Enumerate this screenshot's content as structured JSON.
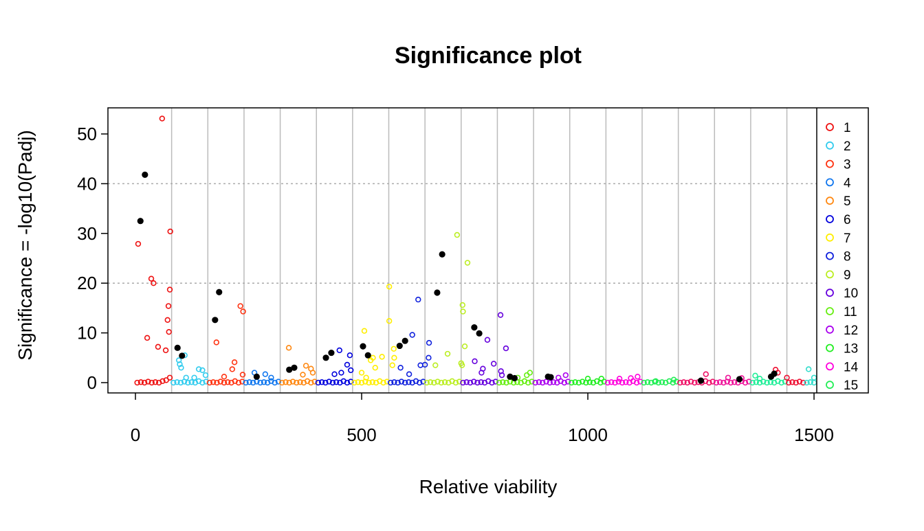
{
  "chart_data": {
    "type": "scatter",
    "title": "Significance plot",
    "x_label": "Relative viability",
    "y_label": "Significance = -log10(Padj)",
    "xlim": [
      -60.8,
      1506
    ],
    "ylim": [
      -2.07,
      55.25
    ],
    "xticks": [
      0,
      500,
      1000,
      1500
    ],
    "yticks": [
      0,
      10,
      20,
      30,
      40,
      50
    ],
    "hgrid": [
      20,
      40
    ],
    "vgrid": [
      80,
      160,
      240,
      320,
      400,
      480,
      560,
      640,
      720,
      800,
      880,
      960,
      1040,
      1120,
      1200,
      1280,
      1360,
      1440
    ],
    "legend": "right",
    "series": [
      {
        "name": "1",
        "color": "#ee1111",
        "x": [
          4,
          12,
          20,
          28,
          36,
          44,
          52,
          60,
          68,
          76,
          6,
          59,
          35,
          40,
          77,
          76,
          73,
          71,
          74,
          67,
          50,
          26
        ],
        "y": [
          0,
          0.1,
          0,
          0.2,
          0,
          0.1,
          0,
          0.3,
          0.5,
          1,
          27.9,
          53.1,
          20.9,
          20,
          30.4,
          18.7,
          15.4,
          12.6,
          10.2,
          6.5,
          7.2,
          9
        ]
      },
      {
        "name": "2",
        "color": "#33ccee",
        "x": [
          84,
          92,
          100,
          108,
          116,
          124,
          132,
          140,
          148,
          156,
          109,
          96,
          98,
          101,
          140,
          148,
          155,
          112,
          130
        ],
        "y": [
          0,
          0.1,
          0,
          0.2,
          0,
          0.1,
          0,
          0.3,
          0,
          0.2,
          5.5,
          4.5,
          3.7,
          3,
          2.7,
          2.5,
          1.5,
          1,
          1
        ]
      },
      {
        "name": "3",
        "color": "#ff3311",
        "x": [
          164,
          172,
          180,
          188,
          196,
          204,
          212,
          220,
          228,
          236,
          179,
          232,
          238,
          219,
          214,
          237,
          196
        ],
        "y": [
          0,
          0.1,
          0,
          0.2,
          0,
          0.1,
          0,
          0.3,
          0,
          0.2,
          8.1,
          15.4,
          14.3,
          4.1,
          2.7,
          1.6,
          1.2
        ]
      },
      {
        "name": "4",
        "color": "#1177ee",
        "x": [
          244,
          252,
          260,
          268,
          276,
          284,
          292,
          300,
          308,
          316,
          263,
          287,
          300
        ],
        "y": [
          0,
          0.1,
          0,
          0.2,
          0,
          0.1,
          0,
          0.3,
          0,
          0.2,
          2,
          1.7,
          1
        ]
      },
      {
        "name": "5",
        "color": "#ff8811",
        "x": [
          324,
          332,
          340,
          348,
          356,
          364,
          372,
          380,
          388,
          396,
          339,
          377,
          388,
          392,
          370
        ],
        "y": [
          0,
          0.1,
          0,
          0.2,
          0,
          0.1,
          0,
          0.3,
          0,
          0.2,
          7,
          3.4,
          2.8,
          2,
          1.6
        ]
      },
      {
        "name": "6",
        "color": "#0000dd",
        "x": [
          404,
          412,
          420,
          428,
          436,
          444,
          452,
          460,
          468,
          476,
          451,
          474,
          468,
          440,
          455,
          476
        ],
        "y": [
          0,
          0.1,
          0,
          0.2,
          0,
          0.1,
          0,
          0.3,
          0,
          0.2,
          6.5,
          5.5,
          3.6,
          1.7,
          2,
          2.5
        ]
      },
      {
        "name": "7",
        "color": "#ffee00",
        "x": [
          484,
          492,
          500,
          508,
          516,
          524,
          532,
          540,
          548,
          556,
          506,
          545,
          525,
          520,
          530,
          500,
          510,
          561,
          561,
          571,
          572,
          568
        ],
        "y": [
          0,
          0.1,
          0,
          0.2,
          0,
          0.1,
          0,
          0.3,
          0,
          0.2,
          10.4,
          5.2,
          5,
          4.5,
          3,
          2,
          1,
          19.3,
          12.4,
          6.8,
          5,
          3.5
        ]
      },
      {
        "name": "8",
        "color": "#1122dd",
        "x": [
          564,
          572,
          580,
          588,
          596,
          604,
          612,
          620,
          628,
          636,
          625,
          612,
          649,
          648,
          630,
          640,
          586,
          605
        ],
        "y": [
          0,
          0.1,
          0,
          0.2,
          0,
          0.1,
          0,
          0.3,
          0,
          0.2,
          16.7,
          9.6,
          8,
          5,
          3.5,
          3.6,
          3,
          1.7
        ]
      },
      {
        "name": "9",
        "color": "#bbee22",
        "x": [
          644,
          652,
          660,
          668,
          676,
          684,
          692,
          700,
          708,
          716,
          711,
          734,
          723,
          724,
          728,
          690,
          663,
          720,
          722
        ],
        "y": [
          0,
          0.1,
          0,
          0.2,
          0,
          0.1,
          0,
          0.3,
          0,
          0.2,
          29.7,
          24.1,
          15.6,
          14.3,
          7.3,
          5.8,
          3.5,
          3.9,
          3.5
        ]
      },
      {
        "name": "10",
        "color": "#6600dd",
        "x": [
          724,
          732,
          740,
          748,
          756,
          764,
          772,
          780,
          788,
          796,
          807,
          778,
          819,
          750,
          792,
          768,
          765,
          808,
          810
        ],
        "y": [
          0,
          0.1,
          0,
          0.2,
          0,
          0.1,
          0,
          0.3,
          0,
          0.2,
          13.6,
          8.6,
          6.9,
          4.3,
          3.8,
          2.8,
          2,
          2.3,
          1.5
        ]
      },
      {
        "name": "11",
        "color": "#66ee11",
        "x": [
          804,
          812,
          820,
          828,
          836,
          844,
          852,
          860,
          868,
          876,
          872,
          865,
          845
        ],
        "y": [
          0,
          0.1,
          0,
          0.2,
          0,
          0.1,
          0,
          0.3,
          0,
          0.2,
          2,
          1.5,
          1
        ]
      },
      {
        "name": "12",
        "color": "#aa00ee",
        "x": [
          884,
          892,
          900,
          908,
          916,
          924,
          932,
          940,
          948,
          956,
          951,
          935
        ],
        "y": [
          0,
          0.1,
          0,
          0.2,
          0,
          0.1,
          0,
          0.3,
          0,
          0.2,
          1.5,
          1
        ]
      },
      {
        "name": "13",
        "color": "#22ee22",
        "x": [
          964,
          972,
          980,
          988,
          996,
          1004,
          1012,
          1020,
          1028,
          1036,
          1000,
          1030
        ],
        "y": [
          0,
          0.1,
          0,
          0.2,
          0,
          0.1,
          0,
          0.3,
          0,
          0.2,
          0.8,
          0.8
        ]
      },
      {
        "name": "14",
        "color": "#ff00dd",
        "x": [
          1044,
          1052,
          1060,
          1068,
          1076,
          1084,
          1092,
          1100,
          1108,
          1116,
          1070,
          1110,
          1095
        ],
        "y": [
          0,
          0.1,
          0,
          0.2,
          0,
          0.1,
          0,
          0.3,
          0,
          0.2,
          0.8,
          1.2,
          0.9
        ]
      },
      {
        "name": "15",
        "color": "#22ee55",
        "x": [
          1124,
          1132,
          1140,
          1148,
          1156,
          1164,
          1172,
          1180,
          1188,
          1196,
          1150,
          1190
        ],
        "y": [
          0,
          0.1,
          0,
          0.2,
          0,
          0.1,
          0,
          0.3,
          0,
          0.2,
          0.3,
          0.6
        ]
      },
      {
        "color": "#ee1166",
        "x": [
          1204,
          1212,
          1220,
          1228,
          1236,
          1244,
          1252,
          1260,
          1268,
          1276,
          1261
        ],
        "y": [
          0,
          0.1,
          0,
          0.2,
          0,
          0.1,
          0,
          0.3,
          0,
          0.2,
          1.7
        ]
      },
      {
        "color": "#ee1199",
        "x": [
          1284,
          1292,
          1300,
          1308,
          1316,
          1324,
          1332,
          1340,
          1348,
          1356,
          1310,
          1340
        ],
        "y": [
          0,
          0.1,
          0,
          0.2,
          0,
          0.1,
          0,
          0.3,
          0,
          0.2,
          1,
          0.9
        ]
      },
      {
        "color": "#22ee99",
        "x": [
          1364,
          1372,
          1380,
          1388,
          1396,
          1404,
          1412,
          1420,
          1428,
          1436,
          1370,
          1380
        ],
        "y": [
          0,
          0.1,
          0,
          0.2,
          0,
          0.1,
          0,
          0.3,
          0,
          0.2,
          1.4,
          0.8
        ]
      },
      {
        "color": "#ee1133",
        "x": [
          1444,
          1452,
          1460,
          1468,
          1476,
          1415,
          1420,
          1440
        ],
        "y": [
          0,
          0.1,
          0,
          0.2,
          0,
          2.6,
          2,
          1
        ]
      },
      {
        "color": "#33ddcc",
        "x": [
          1484,
          1492,
          1500,
          1488,
          1500
        ],
        "y": [
          0,
          0.1,
          0,
          2.7,
          1
        ]
      },
      {
        "color": "#000000",
        "filled": true,
        "x": [
          11,
          21,
          93,
          103,
          176,
          185,
          268,
          340,
          351,
          421,
          433,
          503,
          514,
          584,
          596,
          667,
          678,
          749,
          760,
          828,
          838,
          912,
          918,
          1250,
          1335,
          1405,
          1412
        ],
        "y": [
          32.5,
          41.8,
          7,
          5.4,
          12.6,
          18.2,
          1.2,
          2.6,
          3,
          5,
          6,
          7.3,
          5.5,
          7.4,
          8.4,
          18.1,
          25.8,
          11.1,
          9.9,
          1.2,
          0.9,
          1.2,
          1.1,
          0.4,
          0.7,
          1.2,
          1.8
        ]
      }
    ]
  }
}
